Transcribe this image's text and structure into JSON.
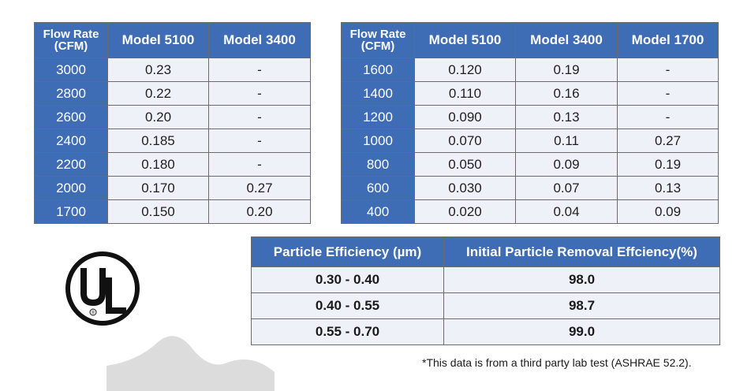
{
  "table1": {
    "headers": [
      "Flow Rate (CFM)",
      "Model 5100",
      "Model 3400"
    ],
    "rows": [
      [
        "3000",
        "0.23",
        "-"
      ],
      [
        "2800",
        "0.22",
        "-"
      ],
      [
        "2600",
        "0.20",
        "-"
      ],
      [
        "2400",
        "0.185",
        "-"
      ],
      [
        "2200",
        "0.180",
        "-"
      ],
      [
        "2000",
        "0.170",
        "0.27"
      ],
      [
        "1700",
        "0.150",
        "0.20"
      ]
    ]
  },
  "table2": {
    "headers": [
      "Flow Rate (CFM)",
      "Model 5100",
      "Model 3400",
      "Model 1700"
    ],
    "rows": [
      [
        "1600",
        "0.120",
        "0.19",
        "-"
      ],
      [
        "1400",
        "0.110",
        "0.16",
        "-"
      ],
      [
        "1200",
        "0.090",
        "0.13",
        "-"
      ],
      [
        "1000",
        "0.070",
        "0.11",
        "0.27"
      ],
      [
        "800",
        "0.050",
        "0.09",
        "0.19"
      ],
      [
        "600",
        "0.030",
        "0.07",
        "0.13"
      ],
      [
        "400",
        "0.020",
        "0.04",
        "0.09"
      ]
    ]
  },
  "table3": {
    "headers": [
      "Particle Efficiency (µm)",
      "Initial Particle Removal Effciency(%)"
    ],
    "rows": [
      [
        "0.30 - 0.40",
        "98.0"
      ],
      [
        "0.40 - 0.55",
        "98.7"
      ],
      [
        "0.55 - 0.70",
        "99.0"
      ]
    ]
  },
  "note": "*This data is from a third party lab test (ASHRAE 52.2).",
  "logo": {
    "icon": "ul-certification-icon",
    "text": "UL",
    "mark": "®"
  },
  "colors": {
    "header_bg": "#3e6db5",
    "cell_bg": "#eef2f8",
    "border": "#6b6b6b"
  }
}
